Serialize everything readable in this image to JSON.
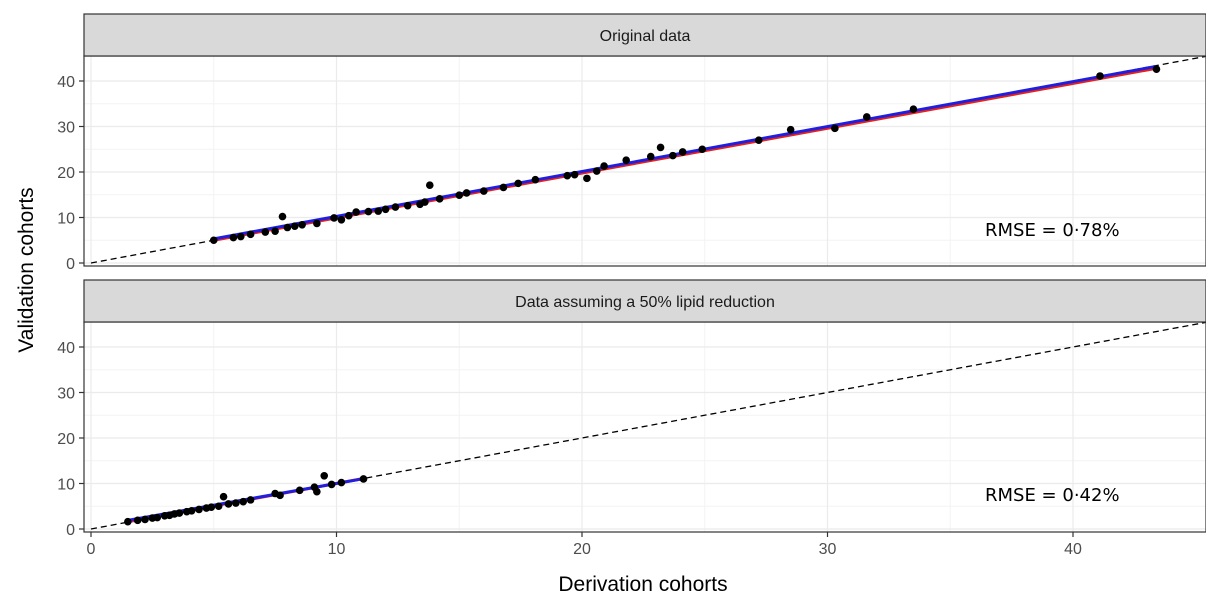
{
  "chart_data": {
    "type": "scatter",
    "xlabel": "Derivation cohorts",
    "ylabel": "Validation cohorts",
    "xlim": [
      0,
      45
    ],
    "ylim": [
      0,
      45
    ],
    "x_ticks": [
      "0",
      "10",
      "20",
      "30",
      "40"
    ],
    "y_ticks": [
      "0",
      "10",
      "20",
      "30",
      "40"
    ],
    "grid": true,
    "reference_line": "identity (dashed)",
    "colors": {
      "points": "#000000",
      "fit_red": "#e8201a",
      "fit_blue": "#1f1fe0",
      "reference": "#000000",
      "strip_bg": "#d9d9d9",
      "grid_major": "#ebebeb"
    },
    "panels": [
      {
        "title": "Original data",
        "annotation": "RMSE = 0·78%",
        "points": [
          [
            5.0,
            5.0
          ],
          [
            5.8,
            5.6
          ],
          [
            6.1,
            5.8
          ],
          [
            6.5,
            6.3
          ],
          [
            7.1,
            6.8
          ],
          [
            7.5,
            7.0
          ],
          [
            7.8,
            10.2
          ],
          [
            8.0,
            7.8
          ],
          [
            8.3,
            8.1
          ],
          [
            8.6,
            8.4
          ],
          [
            9.2,
            8.7
          ],
          [
            9.9,
            9.9
          ],
          [
            10.2,
            9.5
          ],
          [
            10.5,
            10.4
          ],
          [
            10.8,
            11.2
          ],
          [
            11.3,
            11.3
          ],
          [
            11.7,
            11.4
          ],
          [
            12.0,
            11.8
          ],
          [
            12.4,
            12.3
          ],
          [
            12.9,
            12.6
          ],
          [
            13.4,
            12.9
          ],
          [
            13.6,
            13.4
          ],
          [
            13.8,
            17.1
          ],
          [
            14.2,
            14.1
          ],
          [
            15.0,
            14.9
          ],
          [
            15.3,
            15.4
          ],
          [
            16.0,
            15.8
          ],
          [
            16.8,
            16.6
          ],
          [
            17.4,
            17.5
          ],
          [
            18.1,
            18.3
          ],
          [
            19.4,
            19.2
          ],
          [
            19.7,
            19.4
          ],
          [
            20.2,
            18.6
          ],
          [
            20.6,
            20.2
          ],
          [
            20.9,
            21.3
          ],
          [
            21.8,
            22.6
          ],
          [
            22.8,
            23.4
          ],
          [
            23.2,
            25.4
          ],
          [
            23.7,
            23.6
          ],
          [
            24.1,
            24.4
          ],
          [
            24.9,
            25.0
          ],
          [
            27.2,
            27.0
          ],
          [
            28.5,
            29.3
          ],
          [
            30.3,
            29.6
          ],
          [
            31.6,
            32.1
          ],
          [
            33.5,
            33.8
          ],
          [
            41.1,
            41.1
          ],
          [
            43.4,
            42.6
          ]
        ],
        "fit_line": [
          [
            5.0,
            5.0
          ],
          [
            43.4,
            42.8
          ]
        ]
      },
      {
        "title": "Data assuming a 50% lipid reduction",
        "annotation": "RMSE = 0·42%",
        "points": [
          [
            1.5,
            1.6
          ],
          [
            1.9,
            1.9
          ],
          [
            2.2,
            2.1
          ],
          [
            2.5,
            2.4
          ],
          [
            2.7,
            2.5
          ],
          [
            3.0,
            2.9
          ],
          [
            3.2,
            3.0
          ],
          [
            3.4,
            3.3
          ],
          [
            3.6,
            3.5
          ],
          [
            3.9,
            3.8
          ],
          [
            4.1,
            4.0
          ],
          [
            4.4,
            4.3
          ],
          [
            4.7,
            4.6
          ],
          [
            4.9,
            4.8
          ],
          [
            5.2,
            5.0
          ],
          [
            5.4,
            7.1
          ],
          [
            5.6,
            5.5
          ],
          [
            5.9,
            5.7
          ],
          [
            6.2,
            6.0
          ],
          [
            6.5,
            6.4
          ],
          [
            7.5,
            7.8
          ],
          [
            7.7,
            7.4
          ],
          [
            8.5,
            8.5
          ],
          [
            9.1,
            9.2
          ],
          [
            9.2,
            8.2
          ],
          [
            9.5,
            11.7
          ],
          [
            9.8,
            9.8
          ],
          [
            10.2,
            10.2
          ],
          [
            11.1,
            11.0
          ]
        ],
        "fit_line": [
          [
            1.5,
            1.6
          ],
          [
            11.1,
            11.1
          ]
        ]
      }
    ]
  }
}
